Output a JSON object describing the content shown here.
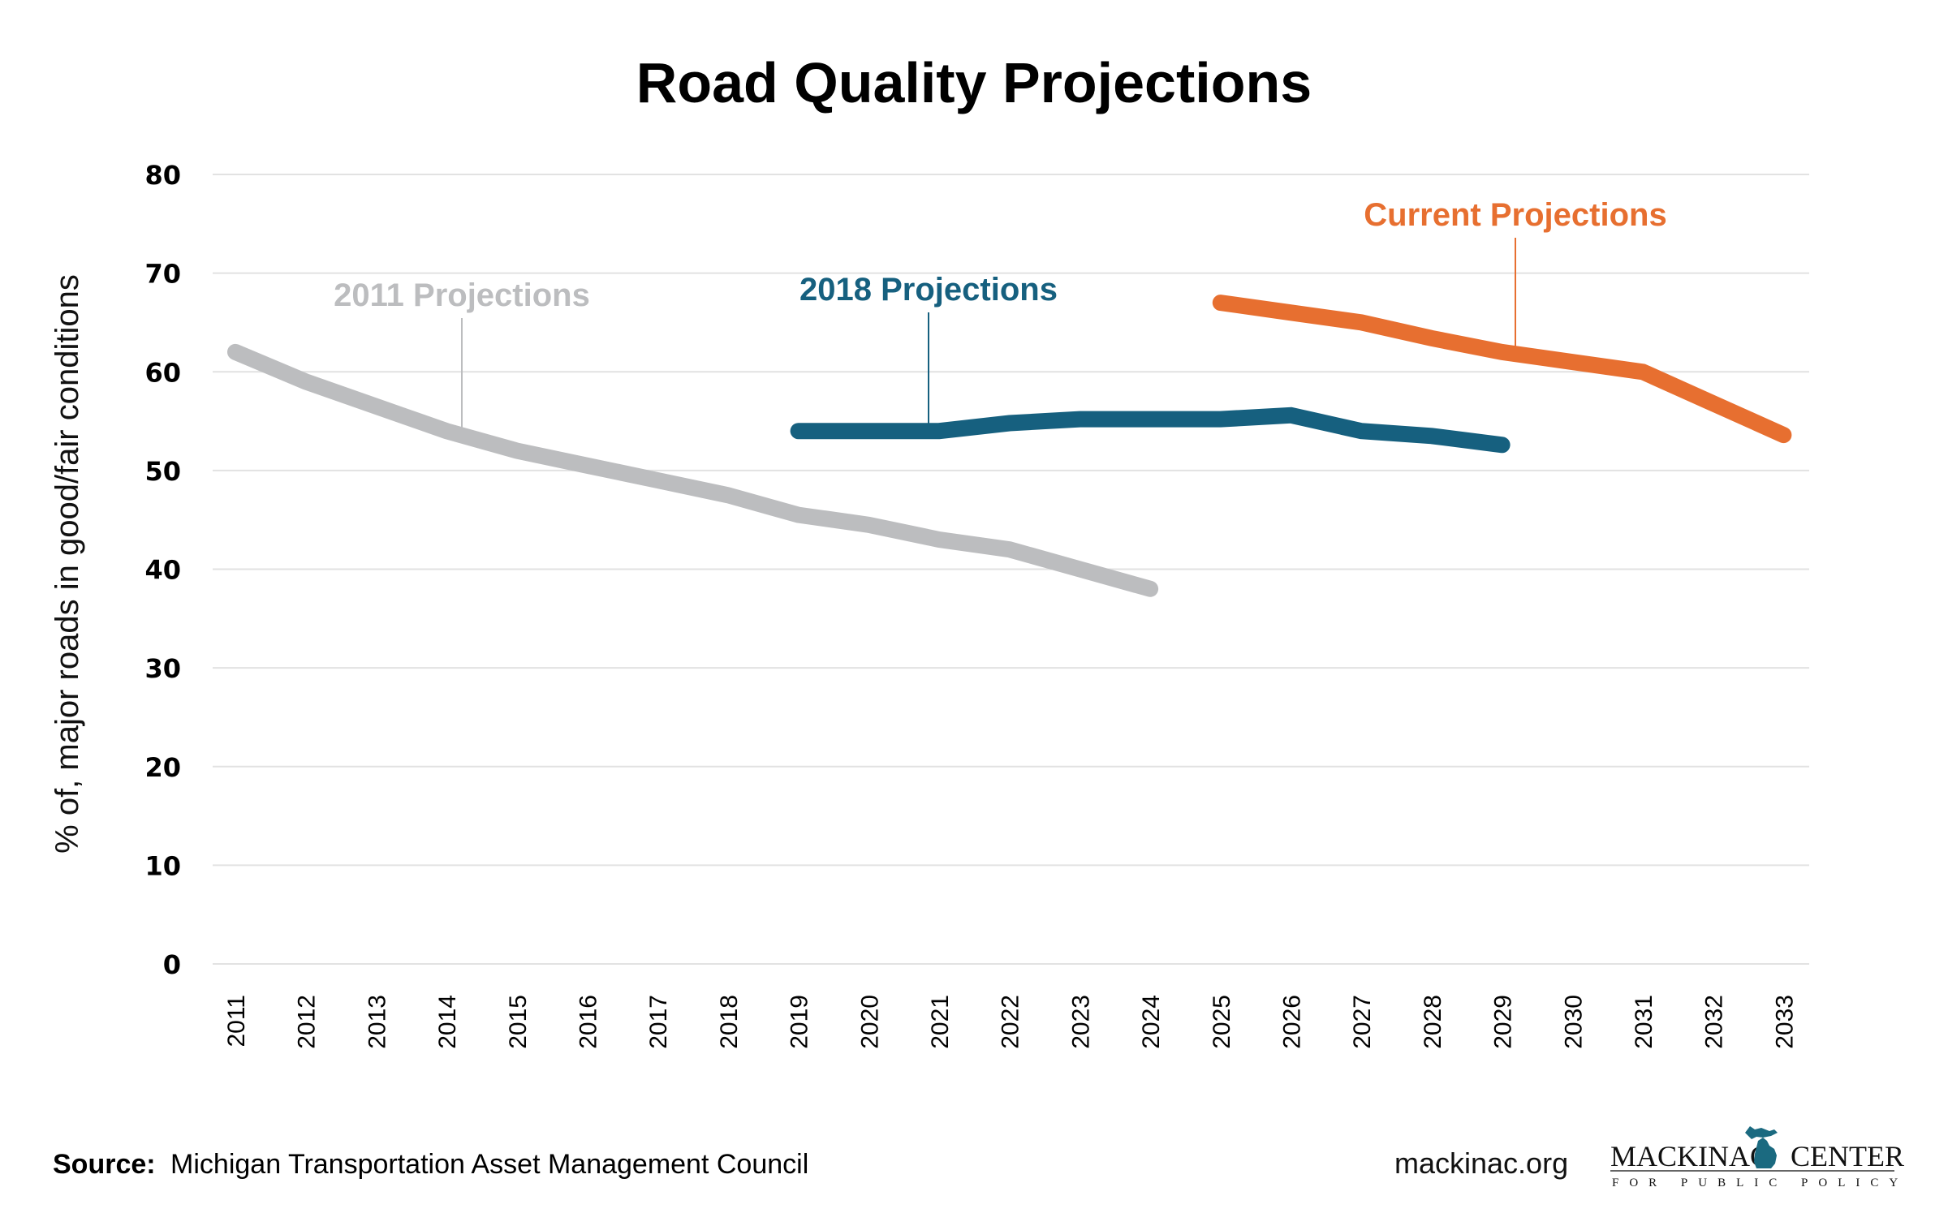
{
  "chart_data": {
    "type": "line",
    "title": "Road Quality Projections",
    "xlabel": "",
    "ylabel": "% of, major roads in good/fair conditions",
    "ylim": [
      0,
      80
    ],
    "yticks": [
      0,
      10,
      20,
      30,
      40,
      50,
      60,
      70,
      80
    ],
    "grid": true,
    "categories": [
      "2011",
      "2012",
      "2013",
      "2014",
      "2015",
      "2016",
      "2017",
      "2018",
      "2019",
      "2020",
      "2021",
      "2022",
      "2023",
      "2024",
      "2025",
      "2026",
      "2027",
      "2028",
      "2029",
      "2030",
      "2031",
      "2032",
      "2033"
    ],
    "series": [
      {
        "name": "2011 Projections",
        "color": "#bcbdbf",
        "label_anchor_year": "2014",
        "x": [
          "2011",
          "2012",
          "2013",
          "2014",
          "2015",
          "2016",
          "2017",
          "2018",
          "2019",
          "2020",
          "2021",
          "2022",
          "2023",
          "2024"
        ],
        "values": [
          62,
          59,
          56.5,
          54,
          52,
          50.5,
          49,
          47.5,
          45.5,
          44.5,
          43,
          42,
          40,
          38
        ]
      },
      {
        "name": "2018 Projections",
        "color": "#16607f",
        "label_anchor_year": "2021",
        "x": [
          "2019",
          "2020",
          "2021",
          "2022",
          "2023",
          "2024",
          "2025",
          "2026",
          "2027",
          "2028",
          "2029"
        ],
        "values": [
          54,
          54,
          54,
          54.8,
          55.2,
          55.2,
          55.2,
          55.6,
          54,
          53.5,
          52.6
        ]
      },
      {
        "name": "Current Projections",
        "color": "#e76f30",
        "label_anchor_year": "2029",
        "x": [
          "2025",
          "2026",
          "2027",
          "2028",
          "2029",
          "2030",
          "2031",
          "2032",
          "2033"
        ],
        "values": [
          67,
          66,
          65,
          63.4,
          62,
          61,
          60,
          56.8,
          53.6
        ]
      }
    ],
    "legend": "inline-annotations"
  },
  "footer": {
    "source_label": "Source:",
    "source_text": "Michigan Transportation Asset Management Council",
    "website": "mackinac.org",
    "logo_left": "MACKINAC",
    "logo_right": "CENTER",
    "logo_sub": "FOR PUBLIC POLICY",
    "logo_color": "#1b6a80"
  }
}
